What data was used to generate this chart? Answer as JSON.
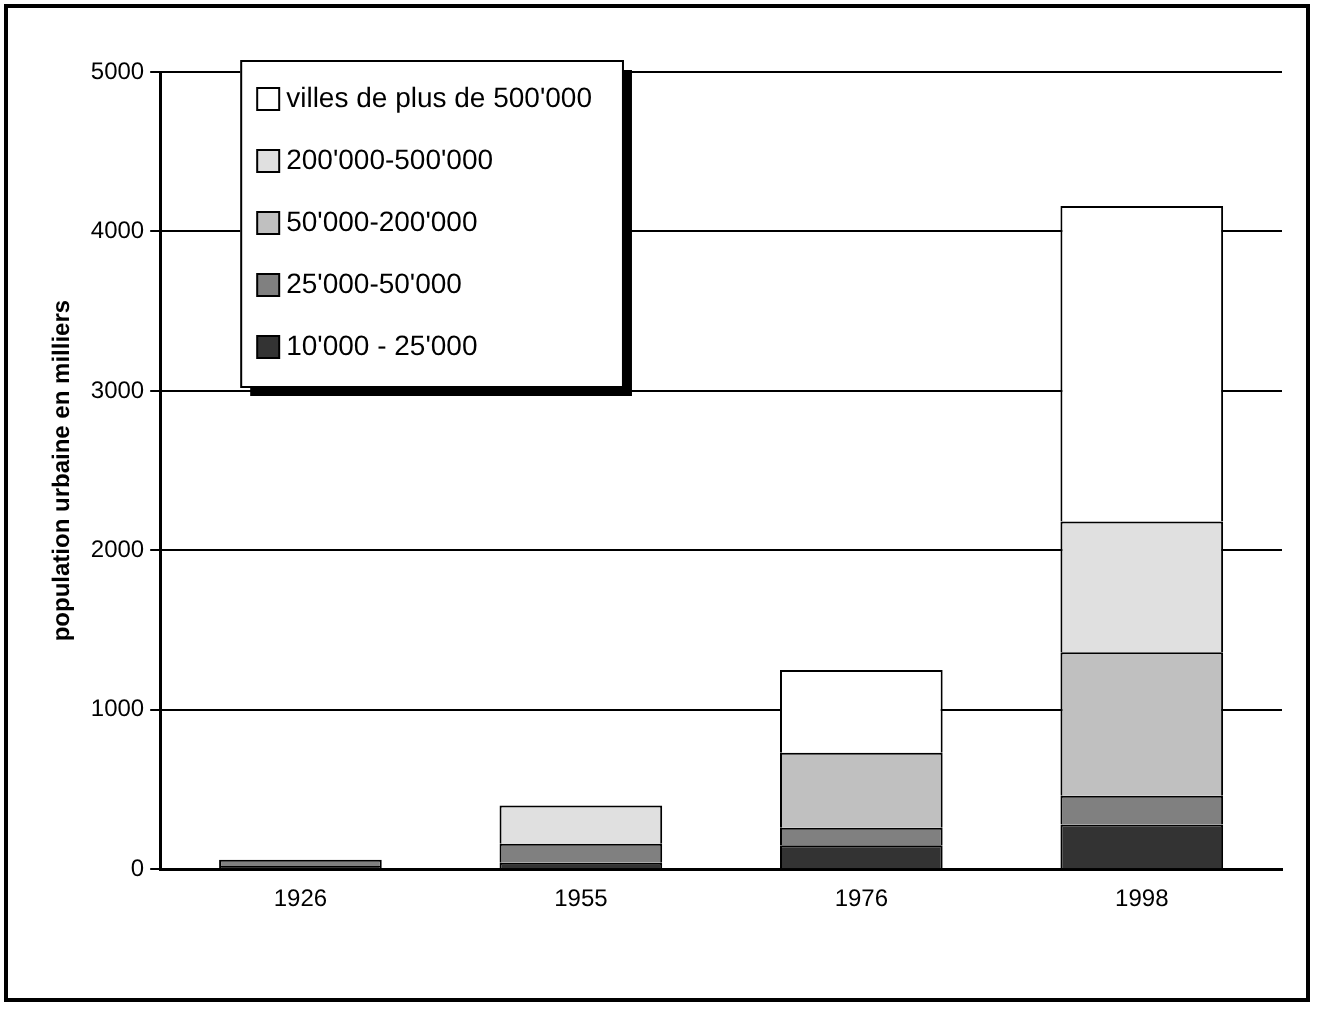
{
  "chart_data": {
    "type": "bar",
    "stacked": true,
    "ylabel": "population urbaine en milliers",
    "categories": [
      "1926",
      "1955",
      "1976",
      "1998"
    ],
    "series": [
      {
        "name": "10'000 - 25'000",
        "color": "#333333",
        "values": [
          20,
          40,
          150,
          280
        ]
      },
      {
        "name": "25'000-50'000",
        "color": "#808080",
        "values": [
          40,
          120,
          110,
          180
        ]
      },
      {
        "name": "50'000-200'000",
        "color": "#c0c0c0",
        "values": [
          null,
          null,
          470,
          900
        ]
      },
      {
        "name": "200'000-500'000",
        "color": "#e0e0e0",
        "values": [
          null,
          240,
          null,
          820
        ]
      },
      {
        "name": "villes de plus de 500'000",
        "color": "#ffffff",
        "values": [
          null,
          null,
          520,
          1980
        ]
      }
    ],
    "ylim": [
      0,
      5000
    ],
    "yticks": [
      0,
      1000,
      2000,
      3000,
      4000,
      5000
    ],
    "grid": "y",
    "legend": "top left"
  }
}
